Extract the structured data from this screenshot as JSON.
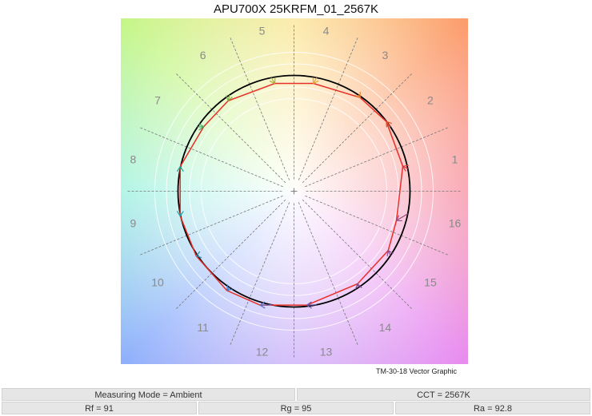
{
  "chart_data": {
    "type": "scatter",
    "title": "APU700X 25KRFM_01_2567K",
    "caption": "TM-30-18 Vector Graphic",
    "reference_radius": 1,
    "grid_circles": [
      0.8,
      0.9,
      1.1,
      1.2
    ],
    "bin_labels": [
      "1",
      "2",
      "3",
      "4",
      "5",
      "6",
      "7",
      "8",
      "9",
      "10",
      "11",
      "12",
      "13",
      "14",
      "15",
      "16"
    ],
    "test_vector": {
      "color": "#e8302a",
      "points": [
        {
          "bin": "1",
          "x": 0.938,
          "y": 0.216
        },
        {
          "bin": "2",
          "x": 0.796,
          "y": 0.602
        },
        {
          "bin": "3",
          "x": 0.57,
          "y": 0.809
        },
        {
          "bin": "4",
          "x": 0.168,
          "y": 0.931
        },
        {
          "bin": "5",
          "x": -0.166,
          "y": 0.931
        },
        {
          "bin": "6",
          "x": -0.568,
          "y": 0.781
        },
        {
          "bin": "7",
          "x": -0.779,
          "y": 0.557
        },
        {
          "bin": "8",
          "x": -0.981,
          "y": 0.212
        },
        {
          "bin": "9",
          "x": -0.981,
          "y": -0.214
        },
        {
          "bin": "10",
          "x": -0.843,
          "y": -0.559
        },
        {
          "bin": "11",
          "x": -0.579,
          "y": -0.857
        },
        {
          "bin": "12",
          "x": -0.292,
          "y": -0.984
        },
        {
          "bin": "13",
          "x": 0.11,
          "y": -0.984
        },
        {
          "bin": "14",
          "x": 0.548,
          "y": -0.8
        },
        {
          "bin": "15",
          "x": 0.812,
          "y": -0.512
        },
        {
          "bin": "16",
          "x": 0.883,
          "y": -0.253
        }
      ]
    },
    "reference_circle_color": "#000000",
    "arrow_colors": [
      "#e3343a",
      "#e2502a",
      "#e8822a",
      "#e8a623",
      "#b0b030",
      "#7fae3a",
      "#3faa60",
      "#1a9f8f",
      "#1aa0a8",
      "#2a8fb8",
      "#3a78c0",
      "#5a6ac0",
      "#6a5aa8",
      "#7a4a98",
      "#8a4a90",
      "#a04a80"
    ]
  },
  "table": {
    "row1": [
      "Measuring Mode = Ambient",
      "CCT = 2567K"
    ],
    "row2": [
      "Rf = 91",
      "Rg = 95",
      "Ra = 92.8"
    ]
  }
}
